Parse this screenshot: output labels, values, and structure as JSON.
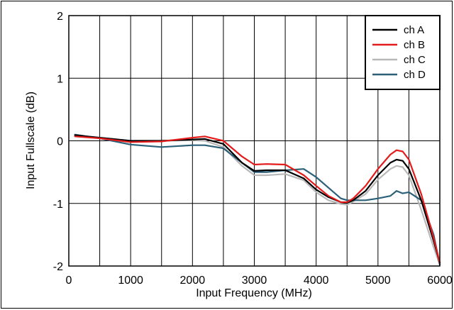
{
  "chart_data": {
    "type": "line",
    "title": "",
    "xlabel": "Input Frequency (MHz)",
    "ylabel": "Input Fullscale (dB)",
    "xlim": [
      0,
      6000
    ],
    "ylim": [
      -2,
      2
    ],
    "x_ticks": [
      "0",
      "1000",
      "2000",
      "3000",
      "4000",
      "5000",
      "6000"
    ],
    "y_ticks": [
      "-2",
      "-1",
      "0",
      "1",
      "2"
    ],
    "x_tick_values": [
      0,
      1000,
      2000,
      3000,
      4000,
      5000,
      6000
    ],
    "y_tick_values": [
      -2,
      -1,
      0,
      1,
      2
    ],
    "x_minor_step": 500,
    "y_minor_step": 1,
    "grid": true,
    "legend_position": "top-right",
    "x": [
      100,
      500,
      1000,
      1500,
      2000,
      2200,
      2500,
      2800,
      3000,
      3200,
      3500,
      3800,
      4000,
      4200,
      4400,
      4500,
      4600,
      4800,
      5000,
      5200,
      5300,
      5400,
      5500,
      5700,
      5900,
      6000
    ],
    "series": [
      {
        "name": "ch A",
        "color": "#000000",
        "values": [
          0.09,
          0.05,
          0.0,
          0.0,
          0.02,
          0.03,
          -0.05,
          -0.35,
          -0.48,
          -0.47,
          -0.47,
          -0.6,
          -0.78,
          -0.9,
          -0.98,
          -0.99,
          -0.95,
          -0.8,
          -0.55,
          -0.35,
          -0.3,
          -0.32,
          -0.45,
          -0.95,
          -1.6,
          -1.95
        ]
      },
      {
        "name": "ch B",
        "color": "#e31b1b",
        "values": [
          0.07,
          0.04,
          -0.02,
          -0.01,
          0.05,
          0.07,
          0.0,
          -0.25,
          -0.38,
          -0.37,
          -0.38,
          -0.55,
          -0.72,
          -0.88,
          -0.98,
          -0.98,
          -0.92,
          -0.72,
          -0.45,
          -0.22,
          -0.15,
          -0.17,
          -0.3,
          -0.85,
          -1.55,
          -1.95
        ]
      },
      {
        "name": "ch C",
        "color": "#b8b8b8",
        "values": [
          0.08,
          0.05,
          0.0,
          0.0,
          0.01,
          0.0,
          -0.1,
          -0.4,
          -0.55,
          -0.55,
          -0.53,
          -0.63,
          -0.82,
          -0.95,
          -1.01,
          -1.02,
          -0.97,
          -0.85,
          -0.62,
          -0.45,
          -0.4,
          -0.42,
          -0.55,
          -1.1,
          -1.7,
          -1.98
        ]
      },
      {
        "name": "ch D",
        "color": "#2c5f78",
        "values": [
          0.1,
          0.04,
          -0.06,
          -0.1,
          -0.07,
          -0.07,
          -0.12,
          -0.35,
          -0.5,
          -0.5,
          -0.47,
          -0.45,
          -0.58,
          -0.75,
          -0.92,
          -0.95,
          -0.95,
          -0.95,
          -0.92,
          -0.88,
          -0.8,
          -0.84,
          -0.82,
          -0.95,
          -1.5,
          -1.98
        ]
      }
    ]
  }
}
